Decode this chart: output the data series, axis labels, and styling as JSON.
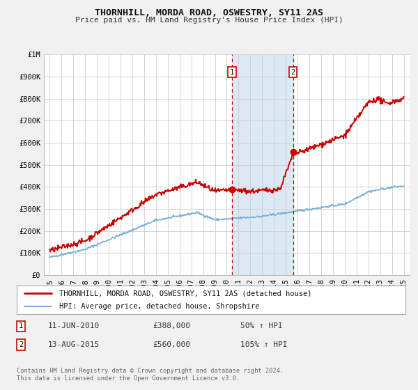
{
  "title": "THORNHILL, MORDA ROAD, OSWESTRY, SY11 2AS",
  "subtitle": "Price paid vs. HM Land Registry's House Price Index (HPI)",
  "legend_line1": "THORNHILL, MORDA ROAD, OSWESTRY, SY11 2AS (detached house)",
  "legend_line2": "HPI: Average price, detached house, Shropshire",
  "red_color": "#cc0000",
  "blue_color": "#7aaddc",
  "shaded_color": "#dce9f5",
  "marker1_date": 2010.44,
  "marker1_value": 388000,
  "marker1_label": "1",
  "marker2_date": 2015.62,
  "marker2_value": 560000,
  "marker2_label": "2",
  "vline1_x": 2010.44,
  "vline2_x": 2015.62,
  "ylim_min": 0,
  "ylim_max": 1000000,
  "xlim_min": 1994.5,
  "xlim_max": 2025.5,
  "ytick_values": [
    0,
    100000,
    200000,
    300000,
    400000,
    500000,
    600000,
    700000,
    800000,
    900000,
    1000000
  ],
  "ytick_labels": [
    "£0",
    "£100K",
    "£200K",
    "£300K",
    "£400K",
    "£500K",
    "£600K",
    "£700K",
    "£800K",
    "£900K",
    "£1M"
  ],
  "xtick_values": [
    1995,
    1996,
    1997,
    1998,
    1999,
    2000,
    2001,
    2002,
    2003,
    2004,
    2005,
    2006,
    2007,
    2008,
    2009,
    2010,
    2011,
    2012,
    2013,
    2014,
    2015,
    2016,
    2017,
    2018,
    2019,
    2020,
    2021,
    2022,
    2023,
    2024,
    2025
  ],
  "footnote_line1": "Contains HM Land Registry data © Crown copyright and database right 2024.",
  "footnote_line2": "This data is licensed under the Open Government Licence v3.0.",
  "background_color": "#f0f0f0",
  "plot_bg_color": "#ffffff",
  "grid_color": "#cccccc"
}
